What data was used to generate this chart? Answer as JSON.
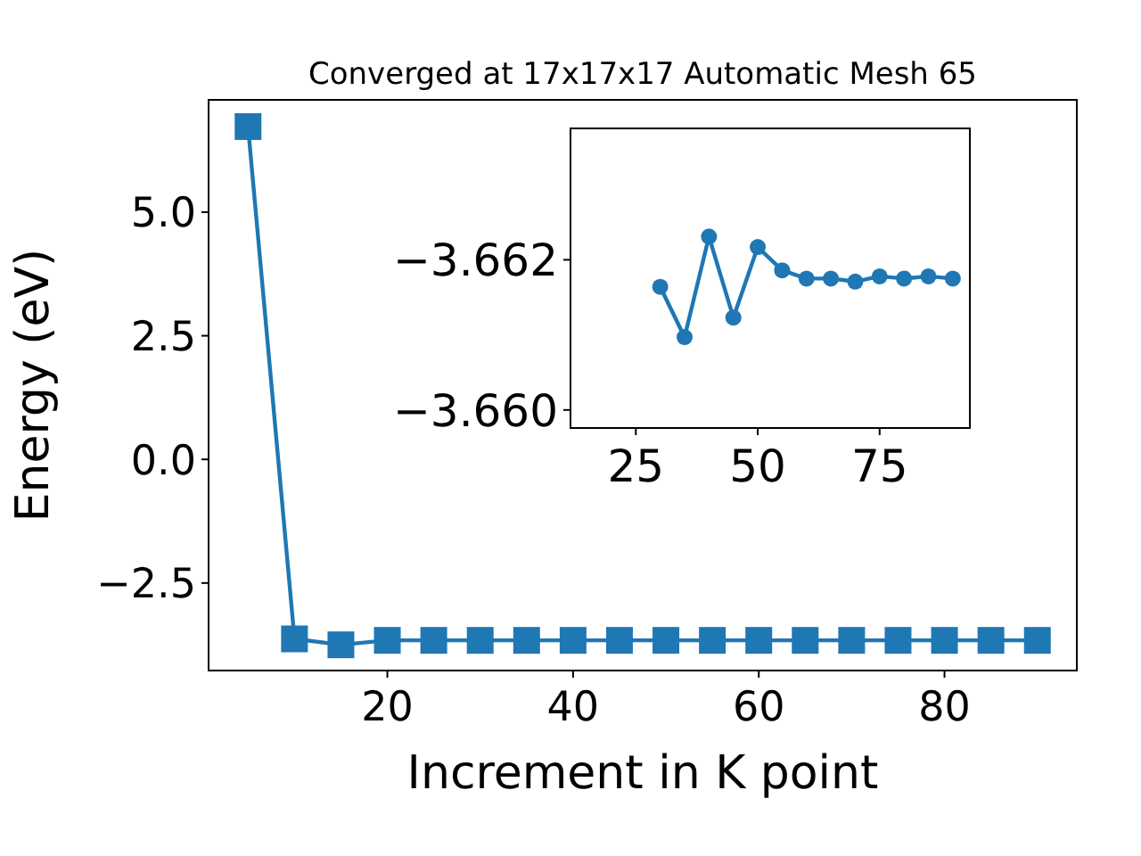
{
  "chart_data": [
    {
      "type": "line",
      "title": "Converged at 17x17x17 Automatic Mesh 65",
      "xlabel": "Increment in K point",
      "ylabel": "Energy (eV)",
      "marker": "square",
      "x": [
        5,
        10,
        15,
        20,
        25,
        30,
        35,
        40,
        45,
        50,
        55,
        60,
        65,
        70,
        75,
        80,
        85,
        90
      ],
      "series": [
        {
          "color": "#1f77b4",
          "values": [
            6.73,
            -3.63,
            -3.75,
            -3.66,
            -3.66,
            -3.66,
            -3.66,
            -3.66,
            -3.66,
            -3.66,
            -3.66,
            -3.66,
            -3.66,
            -3.66,
            -3.66,
            -3.66,
            -3.66,
            -3.66
          ]
        }
      ],
      "xlim": [
        0.75,
        94.25
      ],
      "xticks": [
        20,
        40,
        60,
        80
      ],
      "ylim": [
        -4.27,
        7.27
      ],
      "yticks": [
        {
          "value": -2.5,
          "label": "−2.5"
        },
        {
          "value": 0,
          "label": "0.0"
        },
        2.5,
        {
          "value": 5,
          "label": "5.0"
        }
      ],
      "grid": false
    },
    {
      "type": "line",
      "marker": "circle",
      "x": [
        30,
        35,
        40,
        45,
        50,
        55,
        60,
        65,
        70,
        75,
        80,
        85,
        90
      ],
      "series": [
        {
          "color": "#1f77b4",
          "values": [
            -3.66164,
            -3.66097,
            -3.66231,
            -3.66123,
            -3.66217,
            -3.66186,
            -3.66175,
            -3.66175,
            -3.66171,
            -3.66178,
            -3.66175,
            -3.66178,
            -3.66175
          ]
        }
      ],
      "xlim": [
        11.6,
        93.5
      ],
      "xticks": [
        25,
        50,
        75
      ],
      "ylim": [
        -3.65976,
        -3.66375
      ],
      "yticks": [
        {
          "value": -3.662,
          "label": "−3.662"
        },
        {
          "value": -3.66,
          "label": "−3.660"
        }
      ],
      "grid": false
    }
  ]
}
